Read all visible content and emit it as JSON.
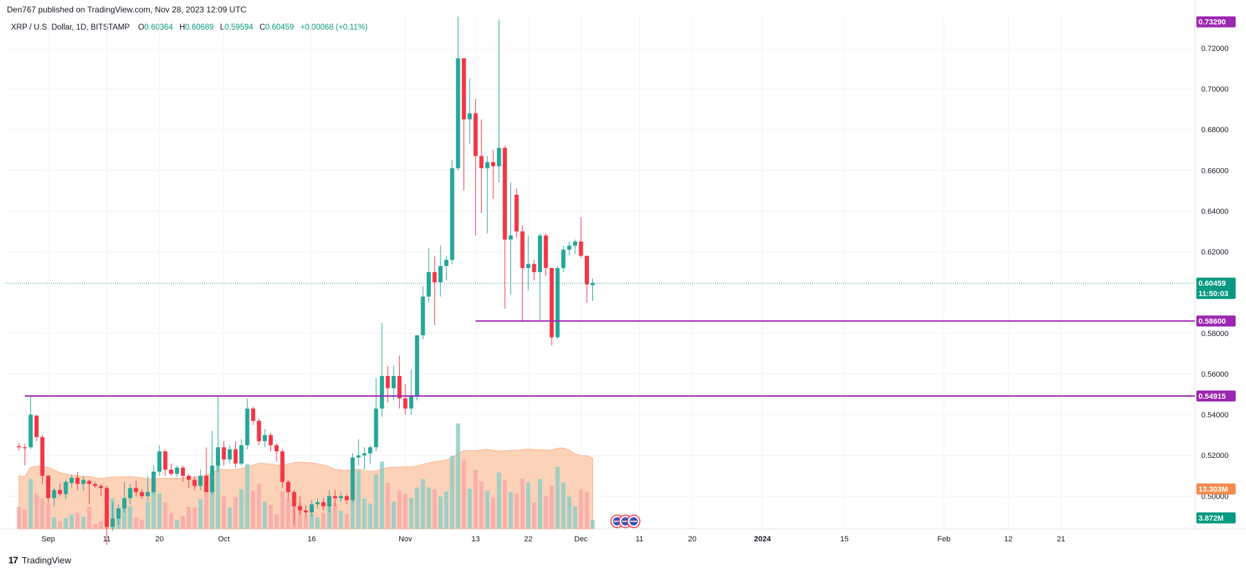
{
  "header": {
    "publisher": "Den767 published on TradingView.com, Nov 28, 2023 12:09 UTC",
    "symbol": "XRP / U.S. Dollar, 1D, BITSTAMP",
    "ohlc": [
      {
        "label": "O",
        "value": "0.60364"
      },
      {
        "label": "H",
        "value": "0.60689"
      },
      {
        "label": "L",
        "value": "0.59594"
      },
      {
        "label": "C",
        "value": "0.60459"
      },
      {
        "label": "",
        "value": "+0.00068 (+0.11%)"
      }
    ]
  },
  "footer": {
    "logo_text": "TradingView"
  },
  "colors": {
    "up": "#26a69a",
    "down": "#f23645",
    "vol_up": "#8fcec6",
    "vol_down": "#f7a9a8",
    "level": "#9c27b0",
    "vol_ma": "#fbc3a0",
    "current": "#089981",
    "vol_badge": "#f38b4a"
  },
  "chart_data": {
    "type": "candlestick",
    "title": "XRP / U.S. Dollar, 1D, BITSTAMP",
    "ylim": [
      0.4839,
      0.7355
    ],
    "y_ticks": [
      "0.72000",
      "0.70000",
      "0.68000",
      "0.66000",
      "0.64000",
      "0.62000",
      "0.58000",
      "0.56000",
      "0.54000",
      "0.52000",
      "0.50000"
    ],
    "x_labels": [
      {
        "label": "Sep",
        "date": "2023-09-01"
      },
      {
        "label": "11",
        "date": "2023-09-11"
      },
      {
        "label": "20",
        "date": "2023-09-20"
      },
      {
        "label": "Oct",
        "date": "2023-10-01"
      },
      {
        "label": "16",
        "date": "2023-10-16"
      },
      {
        "label": "Nov",
        "date": "2023-11-01"
      },
      {
        "label": "13",
        "date": "2023-11-13"
      },
      {
        "label": "22",
        "date": "2023-11-22"
      },
      {
        "label": "Dec",
        "date": "2023-12-01"
      },
      {
        "label": "11",
        "date": "2023-12-11"
      },
      {
        "label": "20",
        "date": "2023-12-20"
      },
      {
        "label": "2024",
        "date": "2024-01-01"
      },
      {
        "label": "15",
        "date": "2024-01-15"
      },
      {
        "label": "Feb",
        "date": "2024-02-01"
      },
      {
        "label": "12",
        "date": "2024-02-12"
      },
      {
        "label": "21",
        "date": "2024-02-21"
      }
    ],
    "horizontal_levels": [
      {
        "value": "0.58600",
        "price": 0.586,
        "from": "2023-11-13"
      },
      {
        "value": "0.54915",
        "price": 0.54915,
        "from": "2023-08-28"
      }
    ],
    "price_badges": {
      "high": "0.73290",
      "current_price": "0.60459",
      "countdown": "11:50:03",
      "volume_ma": "13.303M",
      "volume": "3.872M"
    },
    "candles": [
      {
        "date": "2023-08-27",
        "o": 0.5245,
        "h": 0.526,
        "l": 0.5225,
        "c": 0.524,
        "v": 34
      },
      {
        "date": "2023-08-28",
        "o": 0.524,
        "h": 0.5257,
        "l": 0.515,
        "c": 0.5235,
        "v": 30
      },
      {
        "date": "2023-08-29",
        "o": 0.524,
        "h": 0.5495,
        "l": 0.523,
        "c": 0.54,
        "v": 77
      },
      {
        "date": "2023-08-30",
        "o": 0.5395,
        "h": 0.54,
        "l": 0.527,
        "c": 0.529,
        "v": 55
      },
      {
        "date": "2023-08-31",
        "o": 0.529,
        "h": 0.53,
        "l": 0.506,
        "c": 0.51,
        "v": 47
      },
      {
        "date": "2023-09-01",
        "o": 0.51,
        "h": 0.5105,
        "l": 0.497,
        "c": 0.499,
        "v": 40
      },
      {
        "date": "2023-09-02",
        "o": 0.499,
        "h": 0.504,
        "l": 0.495,
        "c": 0.503,
        "v": 18
      },
      {
        "date": "2023-09-03",
        "o": 0.503,
        "h": 0.506,
        "l": 0.5,
        "c": 0.501,
        "v": 12
      },
      {
        "date": "2023-09-04",
        "o": 0.501,
        "h": 0.508,
        "l": 0.4985,
        "c": 0.507,
        "v": 17
      },
      {
        "date": "2023-09-05",
        "o": 0.5065,
        "h": 0.5105,
        "l": 0.504,
        "c": 0.509,
        "v": 22
      },
      {
        "date": "2023-09-06",
        "o": 0.509,
        "h": 0.512,
        "l": 0.503,
        "c": 0.506,
        "v": 25
      },
      {
        "date": "2023-09-07",
        "o": 0.506,
        "h": 0.51,
        "l": 0.5025,
        "c": 0.508,
        "v": 19
      },
      {
        "date": "2023-09-08",
        "o": 0.5075,
        "h": 0.508,
        "l": 0.496,
        "c": 0.506,
        "v": 34
      },
      {
        "date": "2023-09-09",
        "o": 0.506,
        "h": 0.507,
        "l": 0.504,
        "c": 0.505,
        "v": 8
      },
      {
        "date": "2023-09-10",
        "o": 0.505,
        "h": 0.506,
        "l": 0.5,
        "c": 0.504,
        "v": 12
      },
      {
        "date": "2023-09-11",
        "o": 0.504,
        "h": 0.505,
        "l": 0.476,
        "c": 0.485,
        "v": 52
      },
      {
        "date": "2023-09-12",
        "o": 0.485,
        "h": 0.497,
        "l": 0.483,
        "c": 0.489,
        "v": 47
      },
      {
        "date": "2023-09-13",
        "o": 0.489,
        "h": 0.496,
        "l": 0.486,
        "c": 0.494,
        "v": 28
      },
      {
        "date": "2023-09-14",
        "o": 0.494,
        "h": 0.507,
        "l": 0.492,
        "c": 0.499,
        "v": 44
      },
      {
        "date": "2023-09-15",
        "o": 0.499,
        "h": 0.506,
        "l": 0.496,
        "c": 0.504,
        "v": 35
      },
      {
        "date": "2023-09-16",
        "o": 0.504,
        "h": 0.5075,
        "l": 0.5,
        "c": 0.502,
        "v": 18
      },
      {
        "date": "2023-09-17",
        "o": 0.502,
        "h": 0.5035,
        "l": 0.4985,
        "c": 0.5,
        "v": 14
      },
      {
        "date": "2023-09-18",
        "o": 0.5,
        "h": 0.51,
        "l": 0.4975,
        "c": 0.502,
        "v": 42
      },
      {
        "date": "2023-09-19",
        "o": 0.502,
        "h": 0.515,
        "l": 0.501,
        "c": 0.512,
        "v": 60
      },
      {
        "date": "2023-09-20",
        "o": 0.512,
        "h": 0.525,
        "l": 0.51,
        "c": 0.522,
        "v": 55
      },
      {
        "date": "2023-09-21",
        "o": 0.522,
        "h": 0.523,
        "l": 0.51,
        "c": 0.513,
        "v": 41
      },
      {
        "date": "2023-09-22",
        "o": 0.513,
        "h": 0.516,
        "l": 0.51,
        "c": 0.511,
        "v": 24
      },
      {
        "date": "2023-09-23",
        "o": 0.511,
        "h": 0.515,
        "l": 0.5095,
        "c": 0.514,
        "v": 14
      },
      {
        "date": "2023-09-24",
        "o": 0.514,
        "h": 0.515,
        "l": 0.507,
        "c": 0.51,
        "v": 20
      },
      {
        "date": "2023-09-25",
        "o": 0.51,
        "h": 0.511,
        "l": 0.504,
        "c": 0.508,
        "v": 34
      },
      {
        "date": "2023-09-26",
        "o": 0.508,
        "h": 0.51,
        "l": 0.503,
        "c": 0.505,
        "v": 33
      },
      {
        "date": "2023-09-27",
        "o": 0.505,
        "h": 0.513,
        "l": 0.503,
        "c": 0.51,
        "v": 46
      },
      {
        "date": "2023-09-28",
        "o": 0.51,
        "h": 0.524,
        "l": 0.503,
        "c": 0.502,
        "v": 68
      },
      {
        "date": "2023-09-29",
        "o": 0.502,
        "h": 0.532,
        "l": 0.501,
        "c": 0.515,
        "v": 89
      },
      {
        "date": "2023-09-30",
        "o": 0.515,
        "h": 0.549,
        "l": 0.512,
        "c": 0.524,
        "v": 115
      },
      {
        "date": "2023-10-01",
        "o": 0.524,
        "h": 0.527,
        "l": 0.515,
        "c": 0.518,
        "v": 50
      },
      {
        "date": "2023-10-02",
        "o": 0.518,
        "h": 0.525,
        "l": 0.516,
        "c": 0.523,
        "v": 33
      },
      {
        "date": "2023-10-03",
        "o": 0.523,
        "h": 0.527,
        "l": 0.514,
        "c": 0.516,
        "v": 49
      },
      {
        "date": "2023-10-04",
        "o": 0.516,
        "h": 0.528,
        "l": 0.515,
        "c": 0.525,
        "v": 61
      },
      {
        "date": "2023-10-05",
        "o": 0.525,
        "h": 0.548,
        "l": 0.523,
        "c": 0.543,
        "v": 100
      },
      {
        "date": "2023-10-06",
        "o": 0.543,
        "h": 0.544,
        "l": 0.535,
        "c": 0.537,
        "v": 59
      },
      {
        "date": "2023-10-07",
        "o": 0.537,
        "h": 0.538,
        "l": 0.525,
        "c": 0.527,
        "v": 70
      },
      {
        "date": "2023-10-08",
        "o": 0.527,
        "h": 0.533,
        "l": 0.524,
        "c": 0.53,
        "v": 42
      },
      {
        "date": "2023-10-09",
        "o": 0.53,
        "h": 0.531,
        "l": 0.522,
        "c": 0.525,
        "v": 37
      },
      {
        "date": "2023-10-10",
        "o": 0.525,
        "h": 0.526,
        "l": 0.517,
        "c": 0.522,
        "v": 23
      },
      {
        "date": "2023-10-11",
        "o": 0.522,
        "h": 0.523,
        "l": 0.504,
        "c": 0.507,
        "v": 58
      },
      {
        "date": "2023-10-12",
        "o": 0.507,
        "h": 0.508,
        "l": 0.498,
        "c": 0.502,
        "v": 46
      },
      {
        "date": "2023-10-13",
        "o": 0.502,
        "h": 0.503,
        "l": 0.486,
        "c": 0.495,
        "v": 52
      },
      {
        "date": "2023-10-14",
        "o": 0.495,
        "h": 0.5,
        "l": 0.491,
        "c": 0.493,
        "v": 40
      },
      {
        "date": "2023-10-15",
        "o": 0.493,
        "h": 0.4955,
        "l": 0.49,
        "c": 0.492,
        "v": 20
      },
      {
        "date": "2023-10-16",
        "o": 0.492,
        "h": 0.498,
        "l": 0.49,
        "c": 0.496,
        "v": 23
      },
      {
        "date": "2023-10-17",
        "o": 0.496,
        "h": 0.499,
        "l": 0.494,
        "c": 0.497,
        "v": 18
      },
      {
        "date": "2023-10-18",
        "o": 0.497,
        "h": 0.499,
        "l": 0.493,
        "c": 0.495,
        "v": 25
      },
      {
        "date": "2023-10-19",
        "o": 0.495,
        "h": 0.503,
        "l": 0.492,
        "c": 0.5,
        "v": 35
      },
      {
        "date": "2023-10-20",
        "o": 0.5,
        "h": 0.503,
        "l": 0.495,
        "c": 0.499,
        "v": 40
      },
      {
        "date": "2023-10-21",
        "o": 0.499,
        "h": 0.502,
        "l": 0.497,
        "c": 0.5,
        "v": 28
      },
      {
        "date": "2023-10-22",
        "o": 0.5,
        "h": 0.501,
        "l": 0.496,
        "c": 0.498,
        "v": 23
      },
      {
        "date": "2023-10-23",
        "o": 0.498,
        "h": 0.521,
        "l": 0.497,
        "c": 0.519,
        "v": 65
      },
      {
        "date": "2023-10-24",
        "o": 0.519,
        "h": 0.528,
        "l": 0.515,
        "c": 0.52,
        "v": 90
      },
      {
        "date": "2023-10-25",
        "o": 0.52,
        "h": 0.524,
        "l": 0.513,
        "c": 0.521,
        "v": 47
      },
      {
        "date": "2023-10-26",
        "o": 0.521,
        "h": 0.525,
        "l": 0.516,
        "c": 0.524,
        "v": 39
      },
      {
        "date": "2023-10-27",
        "o": 0.524,
        "h": 0.558,
        "l": 0.522,
        "c": 0.543,
        "v": 84
      },
      {
        "date": "2023-10-28",
        "o": 0.543,
        "h": 0.585,
        "l": 0.539,
        "c": 0.559,
        "v": 104
      },
      {
        "date": "2023-10-29",
        "o": 0.559,
        "h": 0.564,
        "l": 0.546,
        "c": 0.553,
        "v": 71
      },
      {
        "date": "2023-10-30",
        "o": 0.553,
        "h": 0.564,
        "l": 0.547,
        "c": 0.559,
        "v": 42
      },
      {
        "date": "2023-10-31",
        "o": 0.559,
        "h": 0.569,
        "l": 0.543,
        "c": 0.548,
        "v": 59
      },
      {
        "date": "2023-11-01",
        "o": 0.548,
        "h": 0.555,
        "l": 0.54,
        "c": 0.543,
        "v": 54
      },
      {
        "date": "2023-11-02",
        "o": 0.543,
        "h": 0.562,
        "l": 0.54,
        "c": 0.549,
        "v": 48
      },
      {
        "date": "2023-11-03",
        "o": 0.549,
        "h": 0.579,
        "l": 0.547,
        "c": 0.579,
        "v": 64
      },
      {
        "date": "2023-11-04",
        "o": 0.579,
        "h": 0.603,
        "l": 0.577,
        "c": 0.598,
        "v": 77
      },
      {
        "date": "2023-11-05",
        "o": 0.598,
        "h": 0.622,
        "l": 0.595,
        "c": 0.61,
        "v": 64
      },
      {
        "date": "2023-11-06",
        "o": 0.61,
        "h": 0.618,
        "l": 0.584,
        "c": 0.605,
        "v": 61
      },
      {
        "date": "2023-11-07",
        "o": 0.605,
        "h": 0.623,
        "l": 0.598,
        "c": 0.613,
        "v": 50
      },
      {
        "date": "2023-11-08",
        "o": 0.613,
        "h": 0.618,
        "l": 0.606,
        "c": 0.616,
        "v": 58
      },
      {
        "date": "2023-11-09",
        "o": 0.616,
        "h": 0.665,
        "l": 0.614,
        "c": 0.661,
        "v": 113
      },
      {
        "date": "2023-11-10",
        "o": 0.661,
        "h": 0.7355,
        "l": 0.66,
        "c": 0.715,
        "v": 163
      },
      {
        "date": "2023-11-11",
        "o": 0.715,
        "h": 0.715,
        "l": 0.65,
        "c": 0.685,
        "v": 107
      },
      {
        "date": "2023-11-12",
        "o": 0.685,
        "h": 0.705,
        "l": 0.673,
        "c": 0.688,
        "v": 62
      },
      {
        "date": "2023-11-13",
        "o": 0.688,
        "h": 0.695,
        "l": 0.628,
        "c": 0.667,
        "v": 91
      },
      {
        "date": "2023-11-14",
        "o": 0.667,
        "h": 0.685,
        "l": 0.639,
        "c": 0.661,
        "v": 73
      },
      {
        "date": "2023-11-15",
        "o": 0.661,
        "h": 0.667,
        "l": 0.629,
        "c": 0.664,
        "v": 59
      },
      {
        "date": "2023-11-16",
        "o": 0.664,
        "h": 0.67,
        "l": 0.646,
        "c": 0.662,
        "v": 48
      },
      {
        "date": "2023-11-17",
        "o": 0.662,
        "h": 0.734,
        "l": 0.654,
        "c": 0.671,
        "v": 87
      },
      {
        "date": "2023-11-18",
        "o": 0.671,
        "h": 0.672,
        "l": 0.592,
        "c": 0.626,
        "v": 75
      },
      {
        "date": "2023-11-19",
        "o": 0.626,
        "h": 0.654,
        "l": 0.599,
        "c": 0.628,
        "v": 57
      },
      {
        "date": "2023-11-20",
        "o": 0.648,
        "h": 0.651,
        "l": 0.627,
        "c": 0.63,
        "v": 54
      },
      {
        "date": "2023-11-21",
        "o": 0.63,
        "h": 0.633,
        "l": 0.5855,
        "c": 0.612,
        "v": 78
      },
      {
        "date": "2023-11-22",
        "o": 0.612,
        "h": 0.628,
        "l": 0.601,
        "c": 0.614,
        "v": 72
      },
      {
        "date": "2023-11-23",
        "o": 0.614,
        "h": 0.616,
        "l": 0.606,
        "c": 0.61,
        "v": 41
      },
      {
        "date": "2023-11-24",
        "o": 0.61,
        "h": 0.629,
        "l": 0.586,
        "c": 0.628,
        "v": 77
      },
      {
        "date": "2023-11-25",
        "o": 0.628,
        "h": 0.629,
        "l": 0.608,
        "c": 0.612,
        "v": 51
      },
      {
        "date": "2023-11-26",
        "o": 0.612,
        "h": 0.612,
        "l": 0.574,
        "c": 0.578,
        "v": 67
      },
      {
        "date": "2023-11-27",
        "o": 0.578,
        "h": 0.613,
        "l": 0.577,
        "c": 0.612,
        "v": 96
      },
      {
        "date": "2023-11-28",
        "o": 0.612,
        "h": 0.623,
        "l": 0.61,
        "c": 0.621,
        "v": 72
      },
      {
        "date": "2023-11-29",
        "o": 0.621,
        "h": 0.625,
        "l": 0.618,
        "c": 0.623,
        "v": 50
      },
      {
        "date": "2023-11-30",
        "o": 0.623,
        "h": 0.626,
        "l": 0.619,
        "c": 0.625,
        "v": 35
      },
      {
        "date": "2023-12-01",
        "o": 0.625,
        "h": 0.637,
        "l": 0.617,
        "c": 0.618,
        "v": 61
      },
      {
        "date": "2023-12-02",
        "o": 0.618,
        "h": 0.618,
        "l": 0.595,
        "c": 0.604,
        "v": 57
      },
      {
        "date": "2023-12-03",
        "o": 0.6036,
        "h": 0.6069,
        "l": 0.5959,
        "c": 0.6046,
        "v": 14
      }
    ]
  }
}
